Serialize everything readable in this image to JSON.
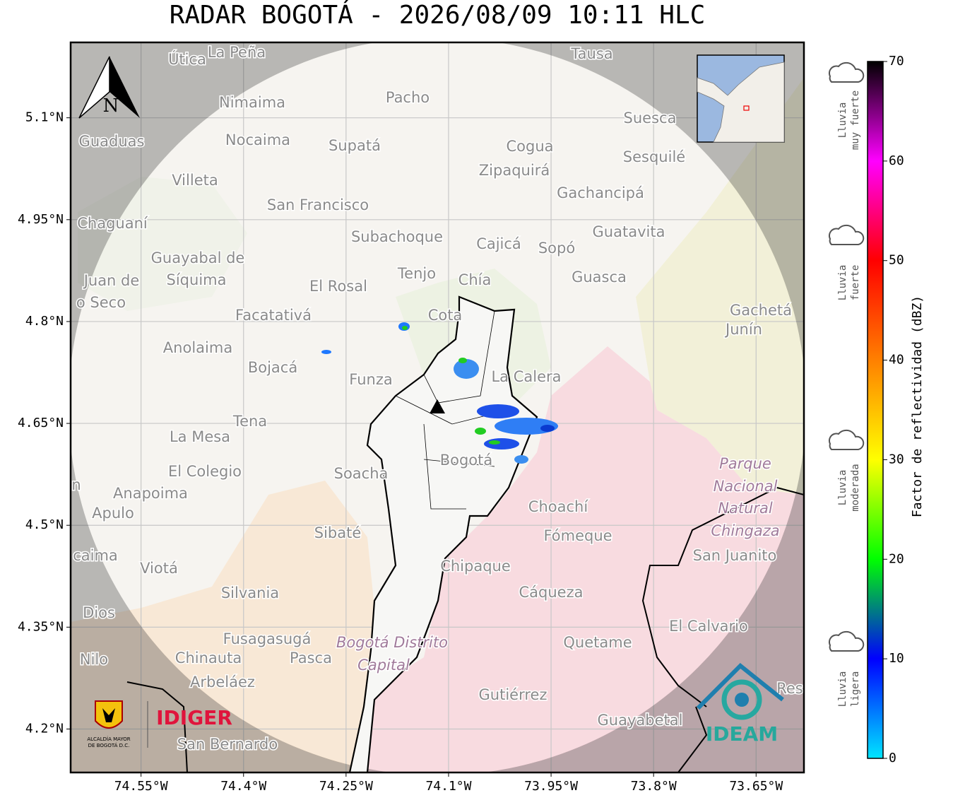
{
  "header": {
    "title": "RADAR BOGOTÁ - 2026/08/09 10:11 HLC"
  },
  "map": {
    "north_label": "N",
    "lat_ticks": [
      {
        "value": 5.1,
        "label": "5.1°N"
      },
      {
        "value": 4.95,
        "label": "4.95°N"
      },
      {
        "value": 4.8,
        "label": "4.8°N"
      },
      {
        "value": 4.65,
        "label": "4.65°N"
      },
      {
        "value": 4.5,
        "label": "4.5°N"
      },
      {
        "value": 4.35,
        "label": "4.35°N"
      },
      {
        "value": 4.2,
        "label": "4.2°N"
      }
    ],
    "lon_ticks": [
      {
        "value": -74.55,
        "label": "74.55°W"
      },
      {
        "value": -74.4,
        "label": "74.4°W"
      },
      {
        "value": -74.25,
        "label": "74.25°W"
      },
      {
        "value": -74.1,
        "label": "74.1°W"
      },
      {
        "value": -73.95,
        "label": "73.95°W"
      },
      {
        "value": -73.8,
        "label": "73.8°W"
      },
      {
        "value": -73.65,
        "label": "73.65°W"
      }
    ],
    "lat_lim": [
      5.211,
      4.136
    ],
    "lon_lim": [
      -74.653,
      -73.58
    ],
    "places": [
      "Útica",
      "La Peña",
      "Tausa",
      "Pacho",
      "Nimaima",
      "Guaduas",
      "Nocaima",
      "Supatá",
      "Cogua",
      "Suesca",
      "Sesquilé",
      "Villeta",
      "Zipaquirá",
      "Gachancipá",
      "San Francisco",
      "Chaguaní",
      "Guatavita",
      "Subachoque",
      "Cajicá",
      "Sopó",
      "Guayabal de",
      "Síquima",
      "Tenjo",
      "Chía",
      "Guasca",
      "Juan de",
      "El Rosal",
      "o Seco",
      "Cota",
      "Facatativá",
      "Gachetá",
      "Junín",
      "Anolaima",
      "Bojacá",
      "Funza",
      "La Calera",
      "Tena",
      "La Mesa",
      "Bogotá",
      "Soacha",
      "El Colegio",
      "Parque",
      "Nacional",
      "Natural",
      "Chingaza",
      "n",
      "Anapoima",
      "Apulo",
      "Choachí",
      "Sibaté",
      "Fómeque",
      "San Juanito",
      "caima",
      "Viotá",
      "Chipaque",
      "Silvania",
      "Cáqueza",
      "Dios",
      "El Calvario",
      "Fusagasugá",
      "Bogotá Distrito",
      "Quetame",
      "Nilo",
      "Chinauta",
      "Pasca",
      "Capital",
      "Arbeláez",
      "Res",
      "Gutiérrez",
      "Guayabetal",
      "San Bernardo"
    ]
  },
  "colorbar": {
    "label": "Factor de reflectividad (dBZ)",
    "lim": [
      0,
      70
    ],
    "ticks": [
      0,
      10,
      20,
      30,
      40,
      50,
      60,
      70
    ],
    "colors": [
      "#00e5ff",
      "#0000ff",
      "#00ff00",
      "#ffff00",
      "#ff8000",
      "#ff0000",
      "#ff00ff",
      "#000000"
    ],
    "categories": [
      [
        "Lluvia",
        "muy fuerte"
      ],
      [
        "Lluvia",
        "fuerte"
      ],
      [
        "Lluvia",
        "moderada"
      ],
      [
        "Lluvia",
        "ligera"
      ]
    ]
  },
  "logos": {
    "alcaldia": [
      "ALCALDÍA MAYOR",
      "DE BOGOTÁ D.C."
    ],
    "idiger": "IDIGER",
    "ideam": "IDEAM"
  }
}
